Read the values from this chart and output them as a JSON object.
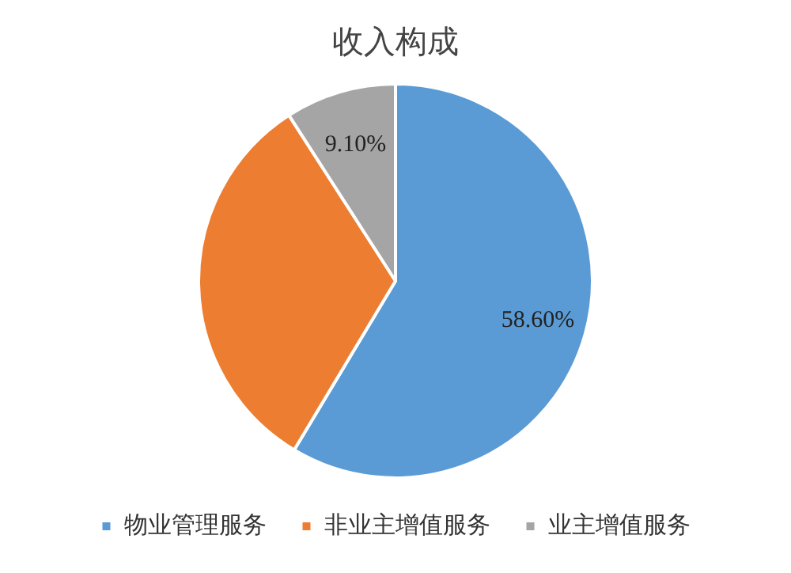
{
  "chart_data": {
    "type": "pie",
    "title": "收入构成",
    "categories": [
      "物业管理服务",
      "非业主增值服务",
      "业主增值服务"
    ],
    "values": [
      58.6,
      32.3,
      9.1
    ],
    "colors": [
      "#5b9bd5",
      "#ed7d31",
      "#a5a5a5"
    ],
    "value_labels": [
      "58.60%",
      null,
      "9.10%"
    ],
    "legend": "bottom"
  }
}
